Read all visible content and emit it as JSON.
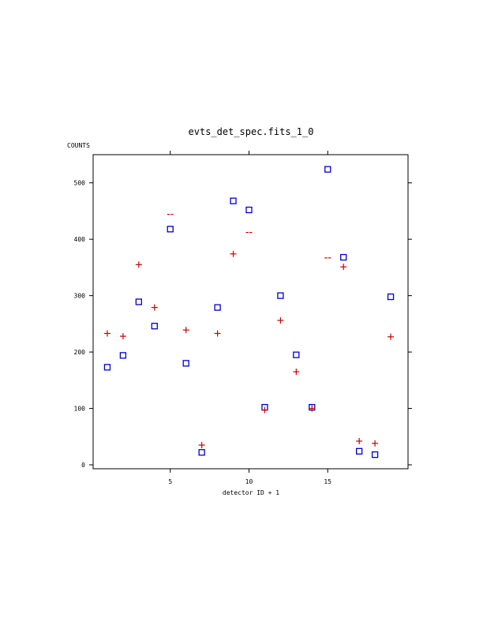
{
  "chart_data": {
    "type": "scatter",
    "title": "evts_det_spec.fits_1_0",
    "xlabel": "detector ID + 1",
    "ylabel": "COUNTS",
    "xlim": [
      0.1,
      20.1
    ],
    "ylim": [
      -7,
      550
    ],
    "xticks": [
      5,
      10,
      15
    ],
    "yticks": [
      0,
      100,
      200,
      300,
      400,
      500
    ],
    "grid": false,
    "legend": "none",
    "series": [
      {
        "marker": "square",
        "color": "#0000cc",
        "x": [
          1,
          2,
          3,
          4,
          5,
          6,
          7,
          8,
          9,
          10,
          11,
          12,
          13,
          14,
          15,
          16,
          17,
          18,
          19
        ],
        "y": [
          173,
          194,
          289,
          246,
          418,
          180,
          22,
          279,
          468,
          452,
          102,
          300,
          195,
          102,
          524,
          368,
          24,
          18,
          298
        ]
      },
      {
        "marker": "plus",
        "color": "#cc0000",
        "x": [
          1,
          2,
          3,
          4,
          6,
          7,
          8,
          9,
          11,
          12,
          13,
          14,
          16,
          17,
          18,
          19
        ],
        "y": [
          233,
          228,
          355,
          279,
          239,
          35,
          233,
          374,
          97,
          256,
          165,
          100,
          351,
          42,
          38,
          227
        ]
      },
      {
        "marker": "dash",
        "color": "#cc0000",
        "x": [
          5,
          10,
          15
        ],
        "y": [
          444,
          412,
          367
        ]
      }
    ]
  }
}
